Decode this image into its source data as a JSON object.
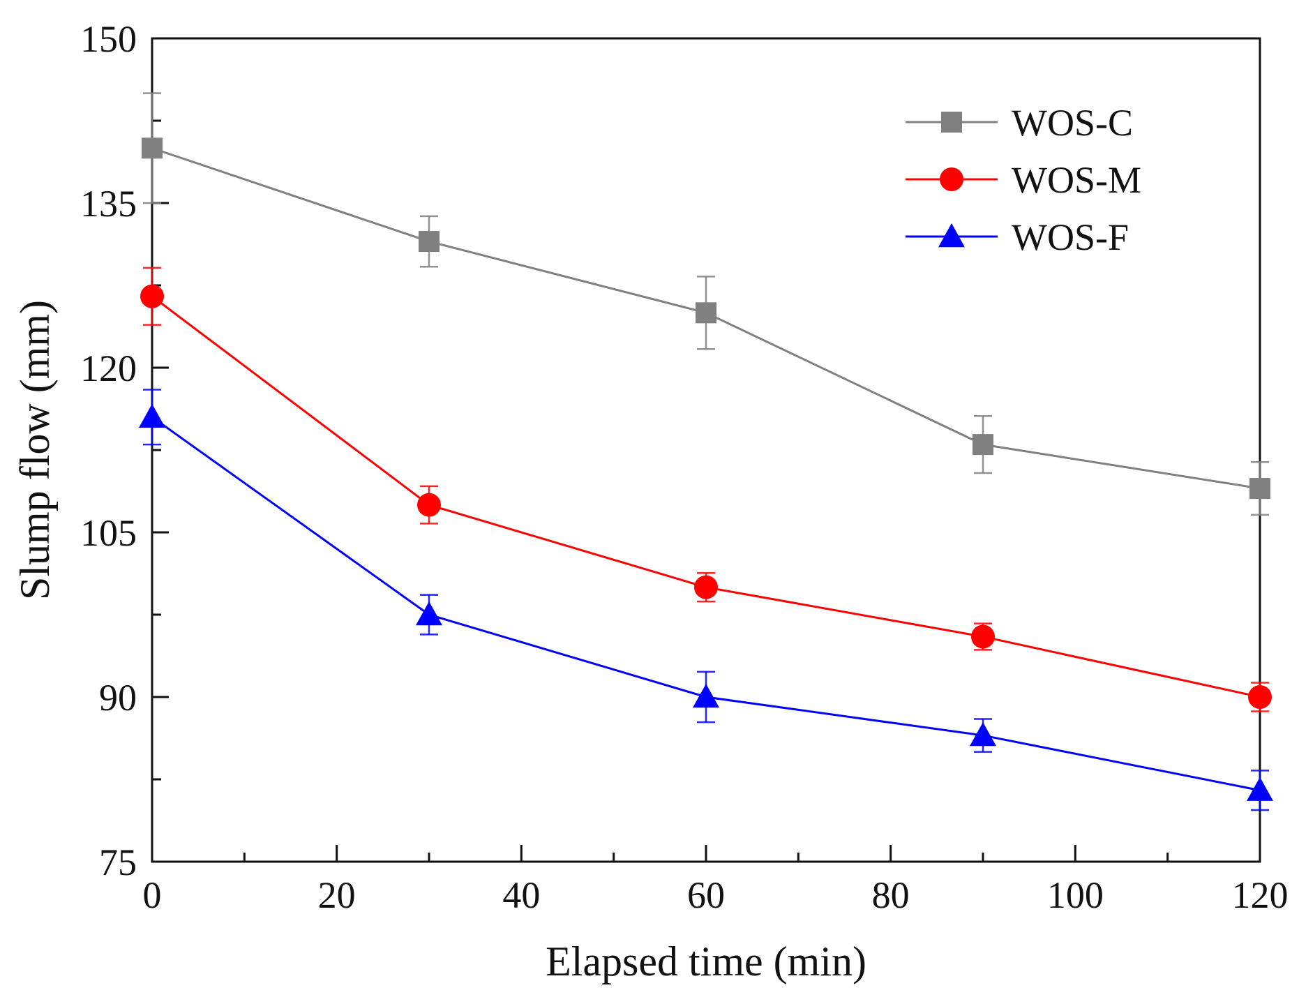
{
  "chart_data": {
    "type": "line",
    "title": "",
    "xlabel": "Elapsed time (min)",
    "ylabel": "Slump flow (mm)",
    "xlim": [
      0,
      120
    ],
    "ylim": [
      75,
      150
    ],
    "x_ticks": [
      0,
      20,
      40,
      60,
      80,
      100,
      120
    ],
    "y_ticks": [
      75,
      90,
      105,
      120,
      135,
      150
    ],
    "x_minor_step": 10,
    "y_minor_step": 7.5,
    "grid": false,
    "legend_position": "top-right",
    "series": [
      {
        "name": "WOS-C",
        "color": "#808080",
        "marker": "square",
        "x": [
          0,
          30,
          60,
          90,
          120
        ],
        "y": [
          140,
          131.5,
          125,
          113,
          109
        ],
        "error": [
          5,
          2.3,
          3.3,
          2.6,
          2.4
        ]
      },
      {
        "name": "WOS-M",
        "color": "#ff0000",
        "marker": "circle",
        "x": [
          0,
          30,
          60,
          90,
          120
        ],
        "y": [
          126.5,
          107.5,
          100,
          95.5,
          90
        ],
        "error": [
          2.6,
          1.7,
          1.3,
          1.2,
          1.3
        ]
      },
      {
        "name": "WOS-F",
        "color": "#0000ff",
        "marker": "triangle",
        "x": [
          0,
          30,
          60,
          90,
          120
        ],
        "y": [
          115.5,
          97.5,
          90,
          86.5,
          81.5
        ],
        "error": [
          2.5,
          1.8,
          2.3,
          1.5,
          1.8
        ]
      }
    ]
  }
}
